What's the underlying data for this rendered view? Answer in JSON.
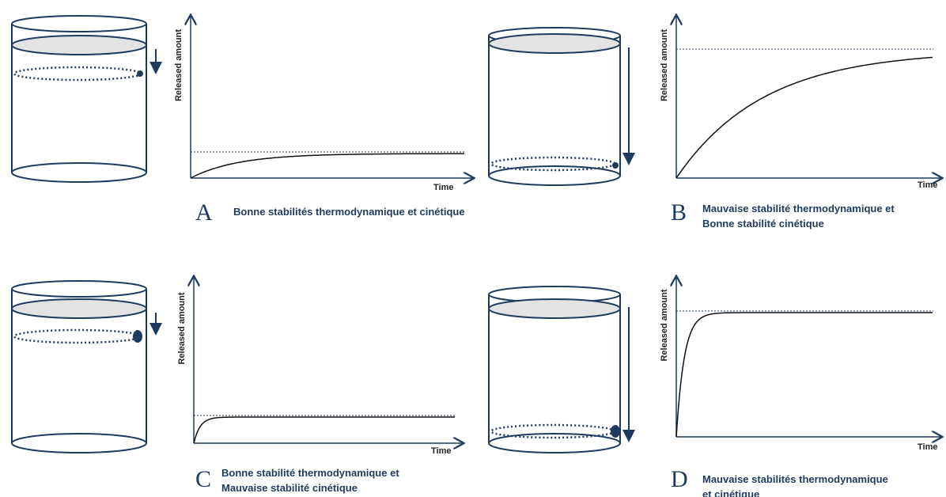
{
  "panels": [
    {
      "letter": "A",
      "caption": [
        "Bonne stabilités thermodynamique et cinétique"
      ],
      "y_label": "Released amount",
      "x_label": "Time"
    },
    {
      "letter": "B",
      "caption": [
        "Mauvaise stabilité thermodynamique et",
        "Bonne stabilité cinétique"
      ],
      "y_label": "Released amount",
      "x_label": "Time"
    },
    {
      "letter": "C",
      "caption": [
        "Bonne stabilité thermodynamique et",
        "Mauvaise stabilité cinétique"
      ],
      "y_label": "Released amount",
      "x_label": "Time"
    },
    {
      "letter": "D",
      "caption": [
        "Mauvaise stabilités thermodynamique",
        "et cinétique"
      ],
      "y_label": "Released amount",
      "x_label": "Time"
    }
  ]
}
